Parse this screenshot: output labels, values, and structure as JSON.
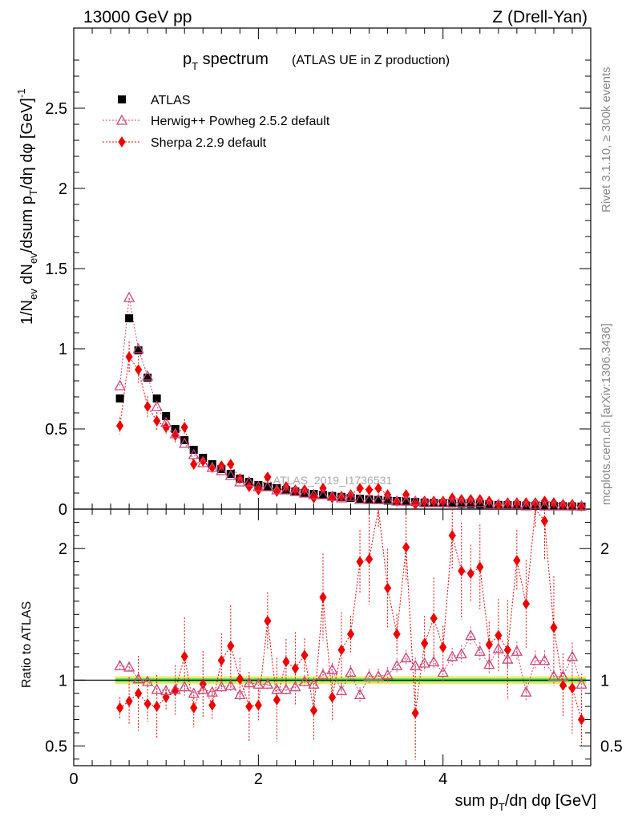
{
  "header": {
    "left": "13000 GeV pp",
    "right": "Z (Drell-Yan)"
  },
  "title": {
    "main": "p",
    "sub": "T",
    "rest": " spectrum",
    "small": "(ATLAS UE in Z production)"
  },
  "side_labels": {
    "rivet": "Rivet 3.1.10, ≥ 300k events",
    "mcplots": "mcplots.cern.ch [arXiv:1306.3436]"
  },
  "watermark": "ATLAS_2019_I1736531",
  "ratio_ylabel": "Ratio to ATLAS",
  "colors": {
    "data": "#000000",
    "herwig": "#cc4477",
    "sherpa": "#ee0000",
    "band_inner": "#66dd66",
    "band_outer": "#eeee66"
  },
  "chart_data": [
    {
      "type": "scatter",
      "panel": "main",
      "title": "pT spectrum (ATLAS UE in Z production)",
      "xlabel": "sum pT/dη dφ [GeV]",
      "ylabel": "1/Nev dNev/dsum pT/dη dφ [GeV]^-1",
      "xlim": [
        0,
        5.6
      ],
      "ylim": [
        0,
        3
      ],
      "yticks": [
        0,
        0.5,
        1,
        1.5,
        2,
        2.5
      ],
      "ytick_labels": [
        "0",
        "0.5",
        "1",
        "1.5",
        "2",
        "2.5"
      ],
      "legend_position": "top-left",
      "x": [
        0.5,
        0.6,
        0.7,
        0.8,
        0.9,
        1.0,
        1.1,
        1.2,
        1.3,
        1.4,
        1.5,
        1.6,
        1.7,
        1.8,
        1.9,
        2.0,
        2.1,
        2.2,
        2.3,
        2.4,
        2.5,
        2.6,
        2.7,
        2.8,
        2.9,
        3.0,
        3.1,
        3.2,
        3.3,
        3.4,
        3.5,
        3.6,
        3.7,
        3.8,
        3.9,
        4.0,
        4.1,
        4.2,
        4.3,
        4.4,
        4.5,
        4.6,
        4.7,
        4.8,
        4.9,
        5.0,
        5.1,
        5.2,
        5.3,
        5.4,
        5.5
      ],
      "series": [
        {
          "name": "ATLAS",
          "marker": "square",
          "values": [
            0.69,
            1.19,
            0.99,
            0.82,
            0.69,
            0.58,
            0.5,
            0.43,
            0.37,
            0.32,
            0.28,
            0.25,
            0.22,
            0.19,
            0.17,
            0.15,
            0.14,
            0.13,
            0.12,
            0.11,
            0.1,
            0.095,
            0.088,
            0.082,
            0.076,
            0.07,
            0.065,
            0.061,
            0.057,
            0.053,
            0.05,
            0.047,
            0.044,
            0.041,
            0.039,
            0.037,
            0.035,
            0.033,
            0.031,
            0.029,
            0.028,
            0.026,
            0.025,
            0.024,
            0.022,
            0.021,
            0.02,
            0.019,
            0.018,
            0.017,
            0.016
          ]
        },
        {
          "name": "Herwig++ Powheg 2.5.2 default",
          "marker": "triangle-open",
          "line": "dotted",
          "values": [
            0.77,
            1.32,
            1.0,
            0.83,
            0.64,
            0.54,
            0.47,
            0.41,
            0.34,
            0.29,
            0.26,
            0.24,
            0.21,
            0.17,
            0.17,
            0.14,
            0.14,
            0.12,
            0.12,
            0.11,
            0.1,
            0.09,
            0.09,
            0.08,
            0.07,
            0.08,
            0.06,
            0.06,
            0.06,
            0.06,
            0.05,
            0.05,
            0.05,
            0.04,
            0.04,
            0.04,
            0.04,
            0.04,
            0.04,
            0.04,
            0.03,
            0.03,
            0.03,
            0.03,
            0.02,
            0.03,
            0.02,
            0.02,
            0.02,
            0.02,
            0.02
          ]
        },
        {
          "name": "Sherpa 2.2.9 default",
          "marker": "diamond",
          "line": "dotted",
          "values": [
            0.52,
            0.95,
            0.87,
            0.64,
            0.55,
            0.51,
            0.46,
            0.51,
            0.28,
            0.3,
            0.26,
            0.27,
            0.28,
            0.19,
            0.14,
            0.12,
            0.2,
            0.11,
            0.14,
            0.12,
            0.12,
            0.07,
            0.13,
            0.07,
            0.08,
            0.09,
            0.13,
            0.12,
            0.13,
            0.09,
            0.05,
            0.09,
            0.03,
            0.05,
            0.05,
            0.05,
            0.07,
            0.06,
            0.06,
            0.06,
            0.05,
            0.03,
            0.04,
            0.04,
            0.04,
            0.04,
            0.05,
            0.04,
            0.03,
            0.03,
            0.02
          ]
        }
      ]
    },
    {
      "type": "scatter",
      "panel": "ratio",
      "xlabel": "sum pT/dη dφ [GeV]",
      "ylabel": "Ratio to ATLAS",
      "xlim": [
        0,
        5.6
      ],
      "ylim": [
        0.35,
        2.3
      ],
      "xticks": [
        0,
        2,
        4
      ],
      "xtick_labels": [
        "0",
        "2",
        "4"
      ],
      "yticks": [
        0.5,
        1,
        2
      ],
      "ytick_labels": [
        "0.5",
        "1",
        "2"
      ],
      "x": [
        0.5,
        0.6,
        0.7,
        0.8,
        0.9,
        1.0,
        1.1,
        1.2,
        1.3,
        1.4,
        1.5,
        1.6,
        1.7,
        1.8,
        1.9,
        2.0,
        2.1,
        2.2,
        2.3,
        2.4,
        2.5,
        2.6,
        2.7,
        2.8,
        2.9,
        3.0,
        3.1,
        3.2,
        3.3,
        3.4,
        3.5,
        3.6,
        3.7,
        3.8,
        3.9,
        4.0,
        4.1,
        4.2,
        4.3,
        4.4,
        4.5,
        4.6,
        4.7,
        4.8,
        4.9,
        5.0,
        5.1,
        5.2,
        5.3,
        5.4,
        5.5
      ],
      "series": [
        {
          "name": "Herwig++ Powheg 2.5.2 default",
          "values": [
            1.11,
            1.1,
            1.01,
            0.99,
            0.93,
            0.92,
            0.93,
            0.95,
            0.9,
            0.93,
            0.91,
            0.95,
            0.96,
            0.89,
            0.98,
            0.97,
            0.97,
            0.93,
            0.93,
            0.95,
            0.99,
            0.97,
            1.04,
            1.08,
            0.92,
            1.06,
            0.89,
            1.03,
            1.03,
            1.04,
            1.11,
            1.17,
            1.11,
            1.13,
            1.14,
            1.06,
            1.18,
            1.2,
            1.34,
            1.22,
            1.12,
            1.24,
            1.16,
            1.22,
            0.91,
            1.15,
            1.15,
            1.03,
            1.03,
            1.18,
            0.97
          ]
        },
        {
          "name": "Sherpa 2.2.9 default",
          "values": [
            0.79,
            0.84,
            0.9,
            0.82,
            0.8,
            0.87,
            0.92,
            1.18,
            0.79,
            0.97,
            0.81,
            1.15,
            1.26,
            1.01,
            0.8,
            0.81,
            1.45,
            0.85,
            1.14,
            1.09,
            1.19,
            0.77,
            1.63,
            0.87,
            1.23,
            1.35,
            1.9,
            1.92,
            2.35,
            1.7,
            1.35,
            2.01,
            0.75,
            1.28,
            1.47,
            1.25,
            2.1,
            1.83,
            1.81,
            1.86,
            1.27,
            1.34,
            1.23,
            1.91,
            1.58,
            2.35,
            2.21,
            1.4,
            0.96,
            0.94,
            0.7
          ]
        }
      ]
    }
  ],
  "legend": [
    {
      "label": "ATLAS"
    },
    {
      "label": "Herwig++ Powheg 2.5.2 default"
    },
    {
      "label": "Sherpa 2.2.9 default"
    }
  ]
}
